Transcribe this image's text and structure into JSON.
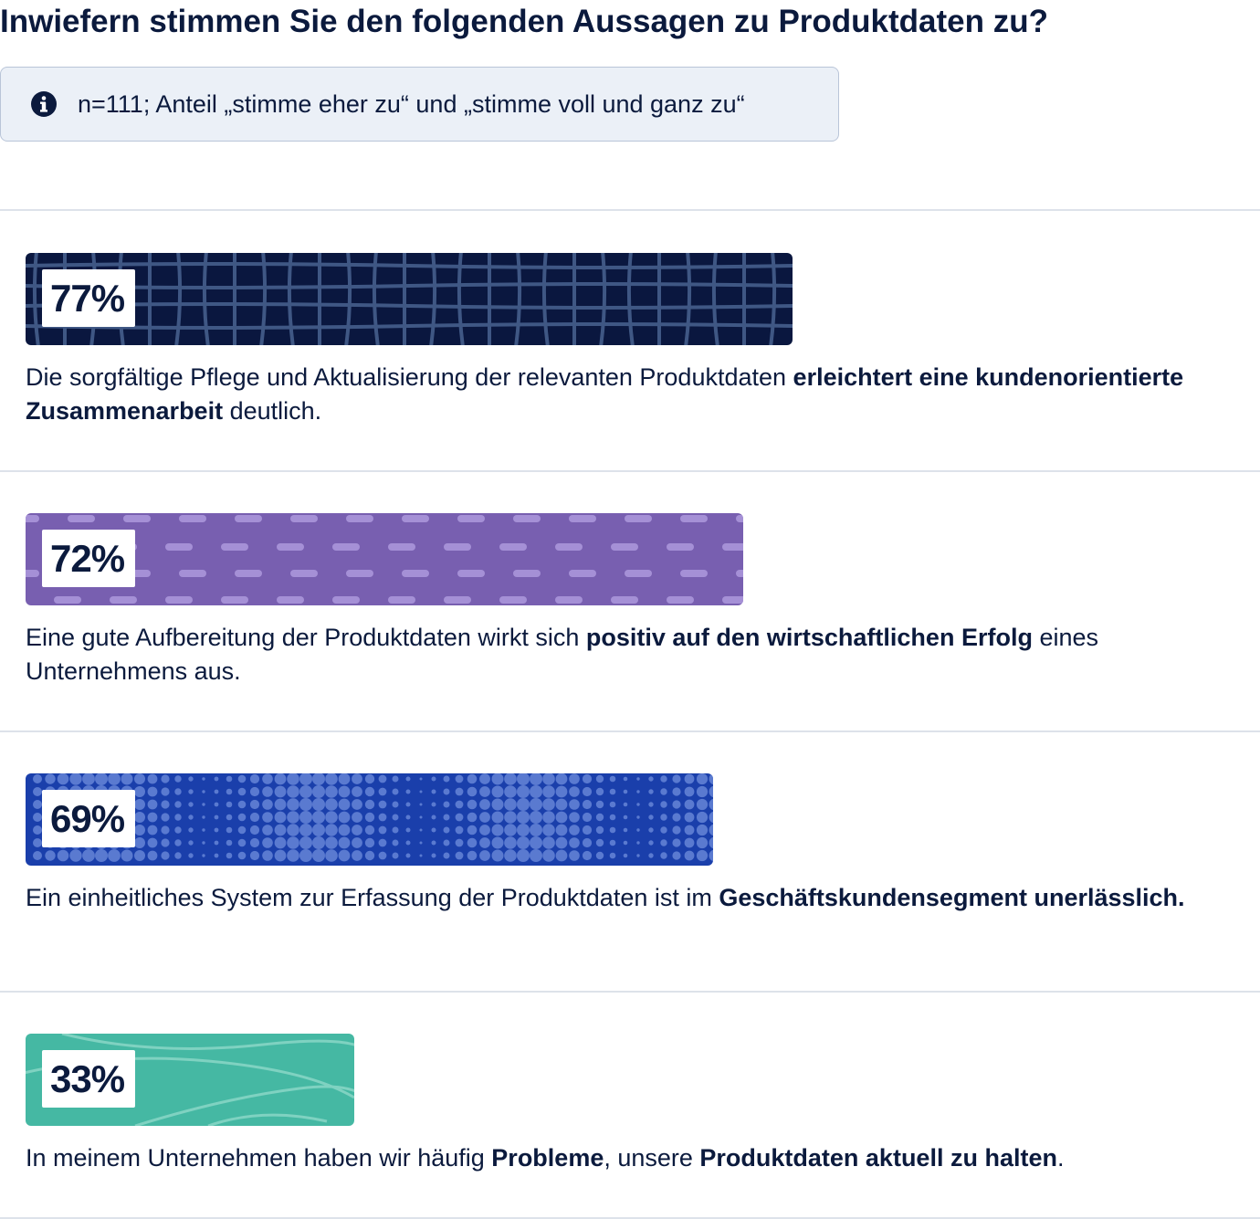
{
  "title": "Inwiefern stimmen Sie den folgenden Aussagen zu Produktdaten zu?",
  "note": {
    "icon": "info-icon",
    "text": "n=111; Anteil „stimme eher zu“ und „stimme voll und ganz zu“"
  },
  "colors": {
    "text": "#0b1a3d",
    "bar_navy": "#0a173f",
    "bar_purple": "#785fb0",
    "bar_blue": "#1a3fab",
    "bar_teal": "#45b8a3",
    "note_bg": "#ebf0f7"
  },
  "chart_data": {
    "type": "bar",
    "orientation": "horizontal",
    "xlim": [
      0,
      100
    ],
    "unit": "%",
    "values": [
      77,
      72,
      69,
      33
    ],
    "labels": [
      "77%",
      "72%",
      "69%",
      "33%"
    ],
    "bar_colors": [
      "#0a173f",
      "#785fb0",
      "#1a3fab",
      "#45b8a3"
    ],
    "bar_patterns": [
      "grid",
      "dashes",
      "dots",
      "waves"
    ],
    "categories": [
      [
        {
          "t": "Die sorgfältige Pflege und Aktualisierung der relevanten Produktdaten ",
          "b": false
        },
        {
          "t": "erleichtert eine kundenorientierte Zusammenarbeit",
          "b": true
        },
        {
          "t": " deutlich.",
          "b": false
        }
      ],
      [
        {
          "t": "Eine gute Aufbereitung der Produktdaten wirkt sich ",
          "b": false
        },
        {
          "t": "positiv auf den wirtschaftlichen Erfolg",
          "b": true
        },
        {
          "t": " eines Unternehmens aus.",
          "b": false
        }
      ],
      [
        {
          "t": "Ein einheitliches System zur Erfassung der Produktdaten ist im ",
          "b": false
        },
        {
          "t": "Geschäftskundensegment unerlässlich.",
          "b": true
        }
      ],
      [
        {
          "t": "In meinem Unternehmen haben wir häufig ",
          "b": false
        },
        {
          "t": "Probleme",
          "b": true
        },
        {
          "t": ", unsere ",
          "b": false
        },
        {
          "t": "Produktdaten aktuell zu halten",
          "b": true
        },
        {
          "t": ".",
          "b": false
        }
      ]
    ]
  }
}
